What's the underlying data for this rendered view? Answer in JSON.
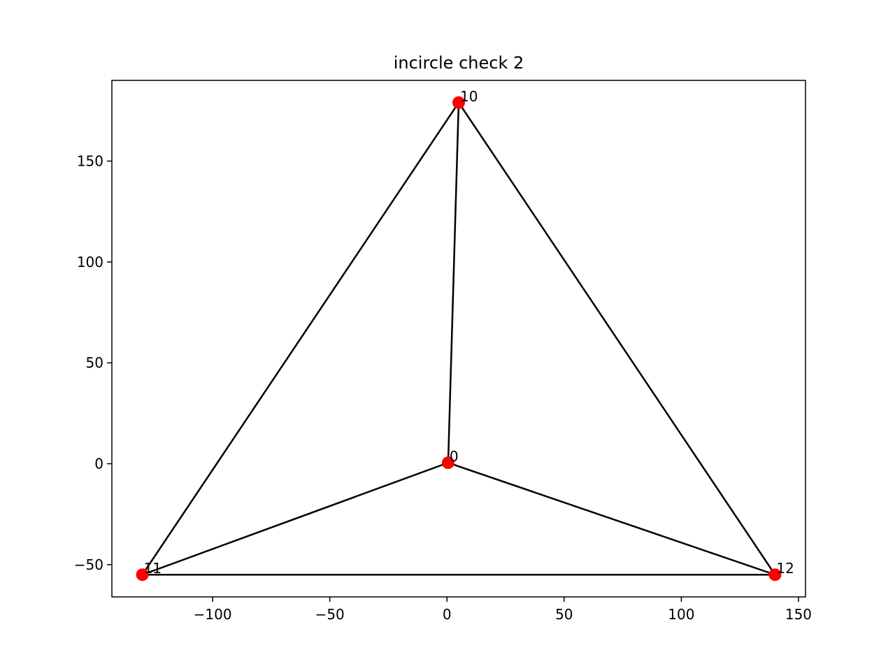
{
  "chart_data": {
    "type": "scatter",
    "title": "incircle check 2",
    "xlabel": "",
    "ylabel": "",
    "xlim": [
      -143,
      153
    ],
    "ylim": [
      -66,
      190
    ],
    "x_ticks": [
      -100,
      -50,
      0,
      50,
      100,
      150
    ],
    "x_tick_labels": [
      "−100",
      "−50",
      "0",
      "50",
      "100",
      "150"
    ],
    "y_ticks": [
      -50,
      0,
      50,
      100,
      150
    ],
    "y_tick_labels": [
      "−50",
      "0",
      "50",
      "100",
      "150"
    ],
    "grid": false,
    "marker_color": "#ff0000",
    "line_color": "#000000",
    "points": [
      {
        "label": "0",
        "x": 0.5,
        "y": 0.5
      },
      {
        "label": "10",
        "x": 5,
        "y": 179
      },
      {
        "label": "11",
        "x": -130,
        "y": -55
      },
      {
        "label": "12",
        "x": 140,
        "y": -55
      }
    ],
    "edges": [
      [
        [
          -130,
          -55
        ],
        [
          140,
          -55
        ]
      ],
      [
        [
          -130,
          -55
        ],
        [
          5,
          179
        ]
      ],
      [
        [
          140,
          -55
        ],
        [
          5,
          179
        ]
      ],
      [
        [
          0.5,
          0.5
        ],
        [
          5,
          179
        ]
      ],
      [
        [
          0.5,
          0.5
        ],
        [
          -130,
          -55
        ]
      ],
      [
        [
          0.5,
          0.5
        ],
        [
          140,
          -55
        ]
      ]
    ]
  }
}
